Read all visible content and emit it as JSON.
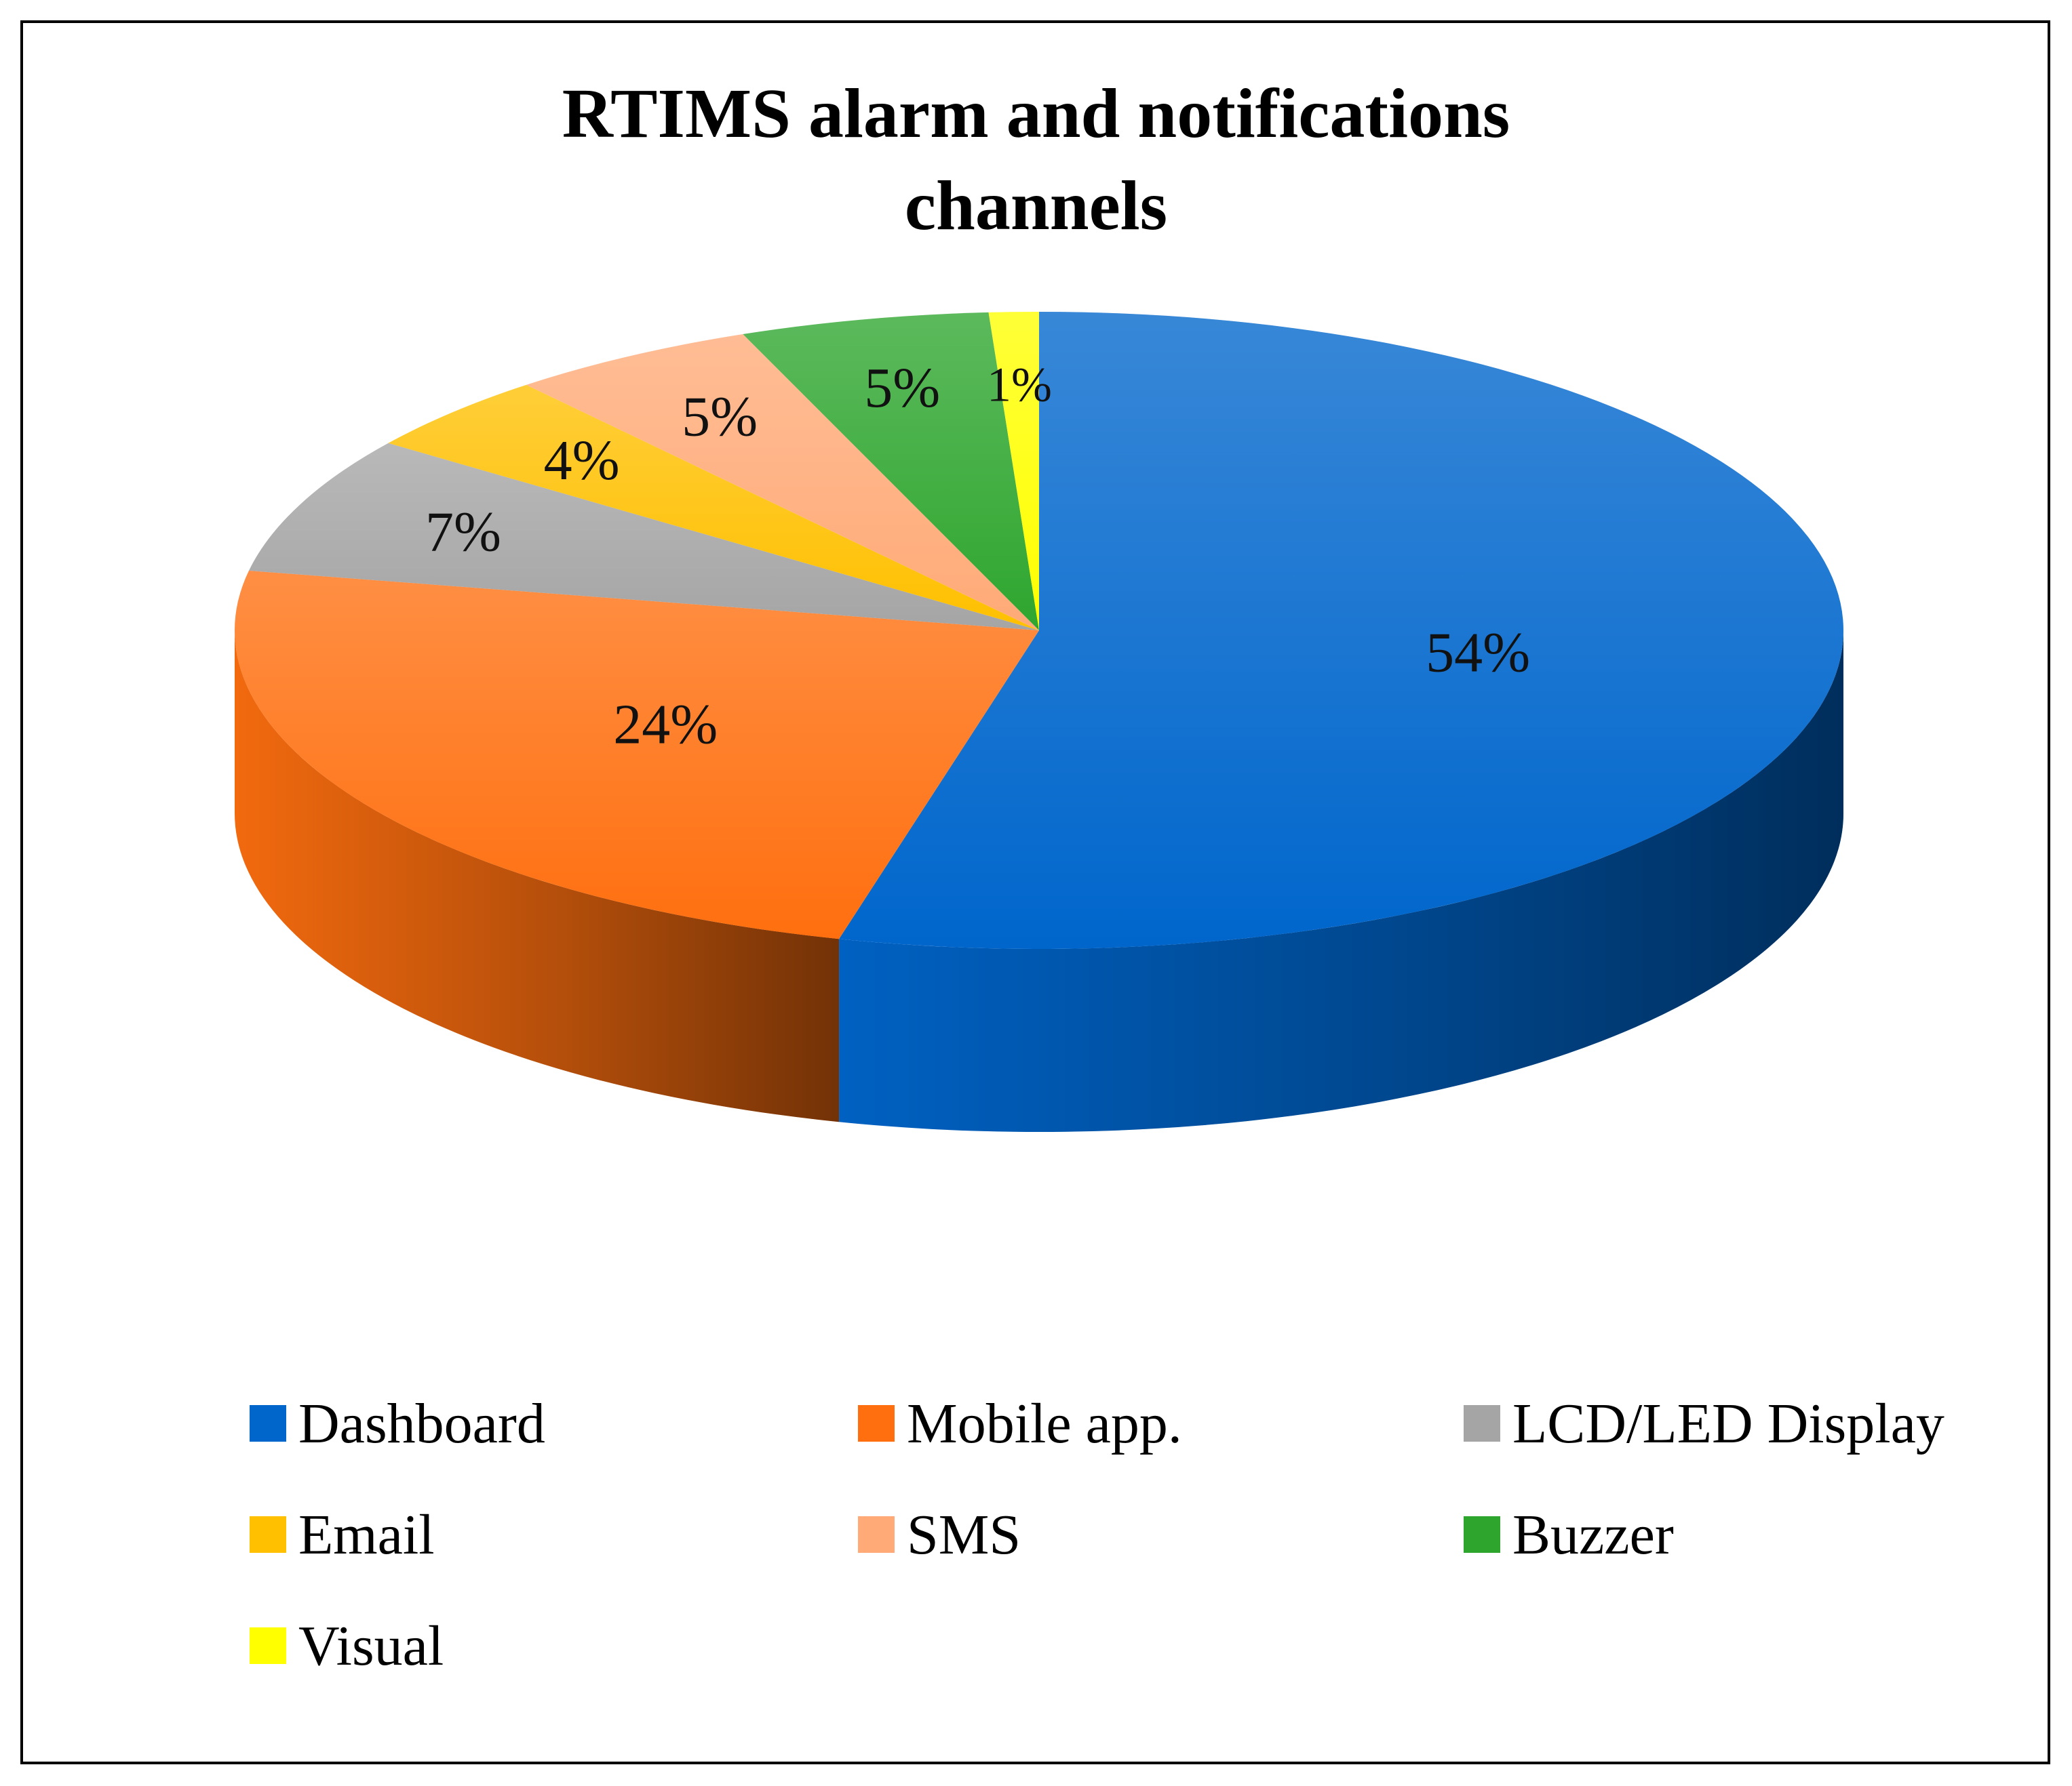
{
  "chart_data": {
    "type": "pie",
    "title": [
      "RTIMS alarm and notifications",
      "channels"
    ],
    "slices": [
      {
        "label": "Dashboard",
        "value": 54,
        "display": "54%",
        "color": "#0066CC"
      },
      {
        "label": "Mobile app.",
        "value": 24,
        "display": "24%",
        "color": "#FF6F0F"
      },
      {
        "label": "LCD/LED Display",
        "value": 7,
        "display": "7%",
        "color": "#A5A5A5"
      },
      {
        "label": "Email",
        "value": 4,
        "display": "4%",
        "color": "#FFC000"
      },
      {
        "label": "SMS",
        "value": 5,
        "display": "5%",
        "color": "#FFAA77"
      },
      {
        "label": "Buzzer",
        "value": 5,
        "display": "5%",
        "color": "#2EA62E"
      },
      {
        "label": "Visual",
        "value": 1,
        "display": "1%",
        "color": "#FFFF00"
      }
    ],
    "legend_position": "bottom",
    "style": "3d"
  }
}
